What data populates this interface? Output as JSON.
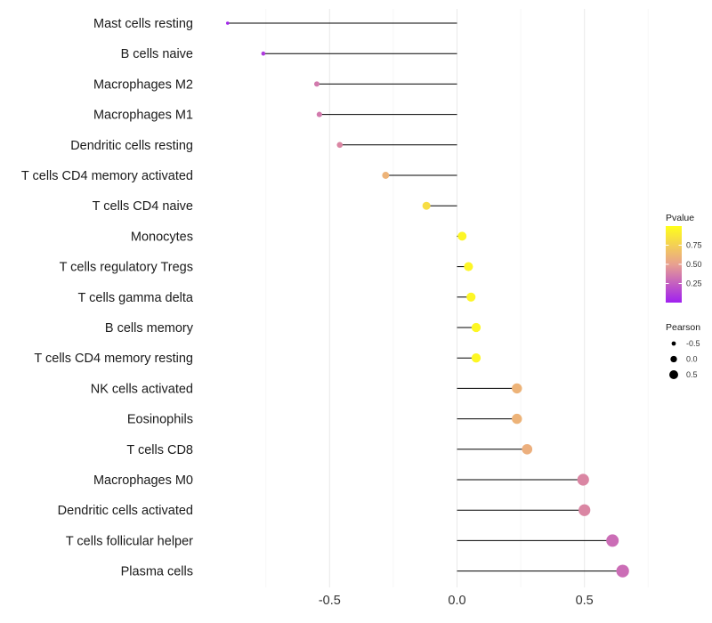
{
  "chart_data": {
    "type": "lollipop",
    "title": "",
    "xlabel": "",
    "ylabel": "",
    "xlim": [
      -0.99,
      0.99
    ],
    "x_ticks": [
      -0.5,
      0.0,
      0.5
    ],
    "x_tick_labels": [
      "-0.5",
      "0.0",
      "0.5"
    ],
    "baseline": 0,
    "grid": true,
    "categories": [
      "Mast cells resting",
      "B cells naive",
      "Macrophages M2",
      "Macrophages M1",
      "Dendritic cells resting",
      "T cells CD4 memory activated",
      "T cells CD4 naive",
      "Monocytes",
      "T cells regulatory  Tregs ",
      "T cells gamma delta",
      "B cells memory",
      "T cells CD4 memory resting",
      "NK cells activated",
      "Eosinophils",
      "T cells CD8",
      "Macrophages M0",
      "Dendritic cells activated",
      "T cells follicular helper",
      "Plasma cells"
    ],
    "pearson": [
      -0.9,
      -0.76,
      -0.55,
      -0.54,
      -0.46,
      -0.28,
      -0.12,
      0.02,
      0.045,
      0.055,
      0.075,
      0.075,
      0.235,
      0.235,
      0.275,
      0.495,
      0.5,
      0.61,
      0.65
    ],
    "pvalue": [
      0.02,
      0.1,
      0.35,
      0.35,
      0.4,
      0.6,
      0.82,
      0.95,
      0.95,
      0.95,
      0.96,
      0.96,
      0.6,
      0.6,
      0.58,
      0.4,
      0.4,
      0.3,
      0.3
    ],
    "legend": {
      "placement": "right",
      "color": {
        "title": "Pvalue",
        "ticks": [
          0.75,
          0.5,
          0.25
        ],
        "tick_labels": [
          "0.75",
          "0.50",
          "0.25"
        ],
        "range": [
          0,
          1
        ],
        "low_color": "#a020f0",
        "mid_color": "#e8a090",
        "high_color": "#ffff1a"
      },
      "size": {
        "title": "Pearson",
        "values": [
          -0.5,
          0.0,
          0.5
        ],
        "labels": [
          "-0.5",
          "0.0",
          "0.5"
        ]
      }
    }
  }
}
